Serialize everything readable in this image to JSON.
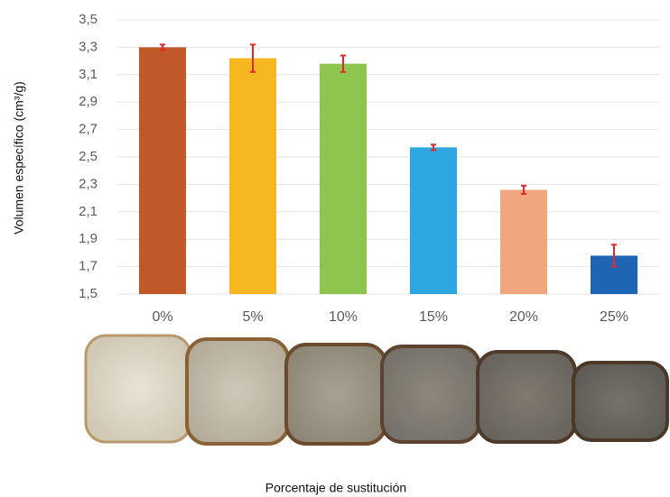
{
  "chart_data": {
    "type": "bar",
    "y_label": "Volumen específico (cm³/g)",
    "x_label": "Porcentaje de sustitución",
    "categories": [
      "0%",
      "5%",
      "10%",
      "15%",
      "20%",
      "25%"
    ],
    "values": [
      3.3,
      3.22,
      3.18,
      2.57,
      2.26,
      1.78
    ],
    "errors": [
      0.02,
      0.1,
      0.06,
      0.02,
      0.03,
      0.08
    ],
    "colors": [
      "#c0582a",
      "#f5b821",
      "#8dc54f",
      "#2ea7e0",
      "#f0a67e",
      "#1e66b3"
    ],
    "error_color": "#e8262b",
    "ylim": [
      1.5,
      3.5
    ],
    "yticks": [
      {
        "value": 1.5,
        "label": "1,5"
      },
      {
        "value": 1.7,
        "label": "1,7"
      },
      {
        "value": 1.9,
        "label": "1,9"
      },
      {
        "value": 2.1,
        "label": "2,1"
      },
      {
        "value": 2.3,
        "label": "2,3"
      },
      {
        "value": 2.5,
        "label": "2,5"
      },
      {
        "value": 2.7,
        "label": "2,7"
      },
      {
        "value": 2.9,
        "label": "2,9"
      },
      {
        "value": 3.1,
        "label": "3,1"
      },
      {
        "value": 3.3,
        "label": "3,3"
      },
      {
        "value": 3.5,
        "label": "3,5"
      }
    ],
    "grid": true
  }
}
